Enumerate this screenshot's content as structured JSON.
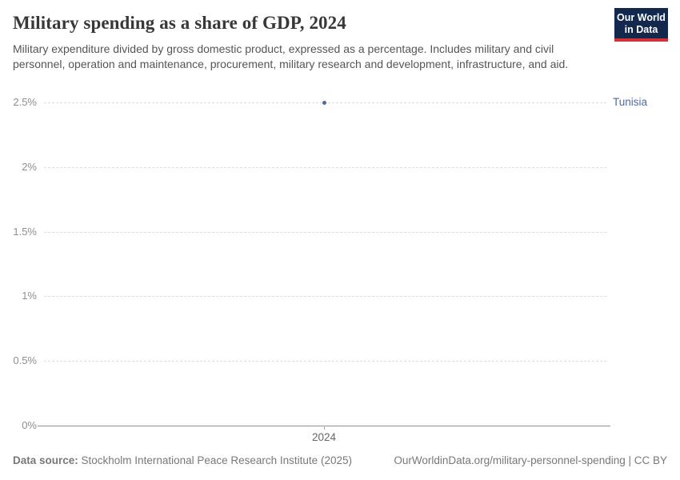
{
  "header": {
    "title": "Military spending as a share of GDP, 2024",
    "subtitle": "Military expenditure divided by gross domestic product, expressed as a percentage. Includes military and civil personnel, operation and maintenance, procurement, military research and development, infrastructure, and aid.",
    "logo": {
      "line1": "Our World",
      "line2": "in Data"
    }
  },
  "chart_data": {
    "type": "scatter",
    "title": "Military spending as a share of GDP, 2024",
    "x": [
      2024
    ],
    "series": [
      {
        "name": "Tunisia",
        "values": [
          2.5
        ]
      }
    ],
    "xlabel": "",
    "ylabel": "",
    "ylim": [
      0,
      2.5
    ],
    "y_ticks": [
      {
        "value": 0,
        "label": "0%"
      },
      {
        "value": 0.5,
        "label": "0.5%"
      },
      {
        "value": 1,
        "label": "1%"
      },
      {
        "value": 1.5,
        "label": "1.5%"
      },
      {
        "value": 2,
        "label": "2%"
      },
      {
        "value": 2.5,
        "label": "2.5%"
      }
    ],
    "x_ticks": [
      {
        "value": 2024,
        "label": "2024"
      }
    ],
    "grid": "horizontal-dashed",
    "legend_position": "right-of-series"
  },
  "footer": {
    "datasource_label": "Data source:",
    "datasource_value": " Stockholm International Peace Research Institute (2025)",
    "url_note": "OurWorldinData.org/military-personnel-spending | CC BY"
  },
  "colors": {
    "series": "#4d6ba5",
    "gridline": "#dcdcdc",
    "axis": "#8f8f8f",
    "logo_bg": "#12294d",
    "logo_stripe": "#d13239",
    "title_text": "#383838",
    "subtitle_text": "#555555",
    "footer_text": "#787878"
  }
}
